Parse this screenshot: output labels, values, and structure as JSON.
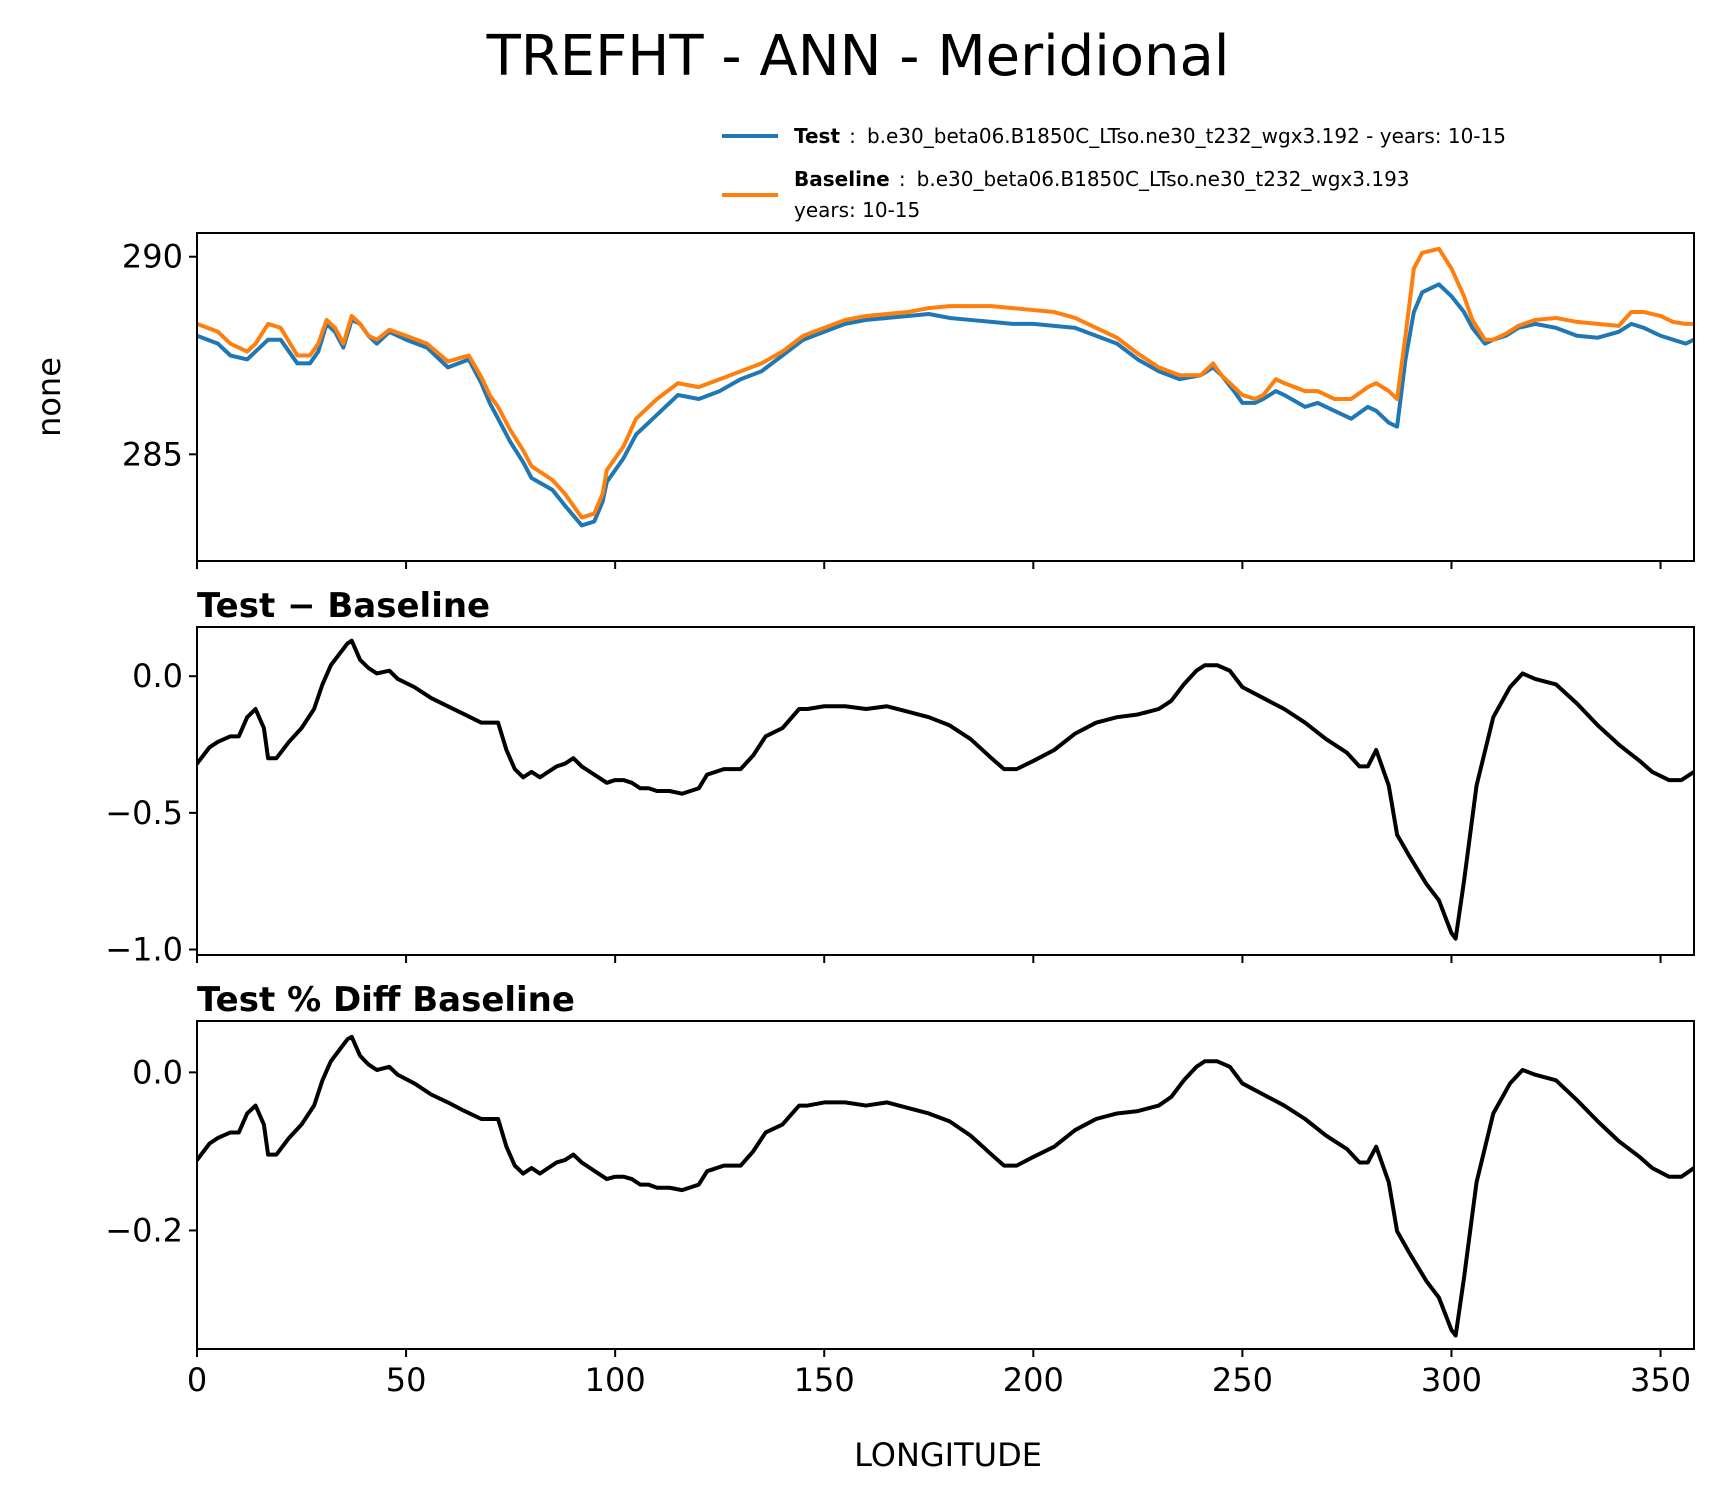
{
  "figure": {
    "title": "TREFHT - ANN - Meridional",
    "xlabel": "LONGITUDE"
  },
  "legend": {
    "test_label": "Test",
    "test_sep": ":",
    "test_desc": "b.e30_beta06.B1850C_LTso.ne30_t232_wgx3.192 - years: 10-15",
    "baseline_label": "Baseline",
    "baseline_sep": ":",
    "baseline_desc": "b.e30_beta06.B1850C_LTso.ne30_t232_wgx3.193",
    "baseline_desc2": "years: 10-15",
    "test_color": "#1f77b4",
    "baseline_color": "#ff7f0e"
  },
  "chart_data": [
    {
      "type": "line",
      "id": "top",
      "title": "",
      "ylabel": "none",
      "xlabel": "",
      "xlim": [
        0,
        358
      ],
      "ylim": [
        282.3,
        290.6
      ],
      "yticks": [
        285,
        290
      ],
      "ytick_labels": [
        "285",
        "290"
      ],
      "xticks": [
        0,
        50,
        100,
        150,
        200,
        250,
        300,
        350
      ],
      "show_xtick_labels": false,
      "series": [
        {
          "name": "Test",
          "color": "#1f77b4",
          "x": [
            0,
            5,
            8,
            12,
            14,
            17,
            20,
            24,
            27,
            29,
            31,
            33,
            35,
            37,
            39,
            41,
            43,
            46,
            50,
            55,
            60,
            65,
            68,
            70,
            72,
            75,
            78,
            80,
            85,
            88,
            92,
            95,
            97,
            98,
            100,
            102,
            105,
            110,
            115,
            120,
            125,
            130,
            135,
            140,
            145,
            150,
            155,
            160,
            165,
            170,
            175,
            180,
            185,
            190,
            195,
            200,
            205,
            210,
            215,
            220,
            225,
            230,
            235,
            240,
            243,
            245,
            248,
            250,
            253,
            255,
            258,
            260,
            265,
            268,
            272,
            276,
            280,
            282,
            285,
            287,
            289,
            291,
            293,
            297,
            300,
            303,
            305,
            308,
            310,
            313,
            316,
            320,
            325,
            330,
            335,
            340,
            343,
            346,
            350,
            353,
            356,
            358
          ],
          "y": [
            288.0,
            287.8,
            287.5,
            287.4,
            287.6,
            287.9,
            287.9,
            287.3,
            287.3,
            287.6,
            288.3,
            288.1,
            287.7,
            288.4,
            288.3,
            288.0,
            287.8,
            288.1,
            287.9,
            287.7,
            287.2,
            287.4,
            286.8,
            286.3,
            285.9,
            285.3,
            284.8,
            284.4,
            284.1,
            283.7,
            283.2,
            283.3,
            283.8,
            284.3,
            284.6,
            284.9,
            285.5,
            286.0,
            286.5,
            286.4,
            286.6,
            286.9,
            287.1,
            287.5,
            287.9,
            288.1,
            288.3,
            288.4,
            288.45,
            288.5,
            288.55,
            288.45,
            288.4,
            288.35,
            288.3,
            288.3,
            288.25,
            288.2,
            288.0,
            287.8,
            287.4,
            287.1,
            286.9,
            287.0,
            287.2,
            287.0,
            286.6,
            286.3,
            286.3,
            286.4,
            286.6,
            286.5,
            286.2,
            286.3,
            286.1,
            285.9,
            286.2,
            286.1,
            285.8,
            285.7,
            287.4,
            288.6,
            289.1,
            289.3,
            289.0,
            288.6,
            288.2,
            287.8,
            287.9,
            288.0,
            288.2,
            288.3,
            288.2,
            288.0,
            287.95,
            288.1,
            288.3,
            288.2,
            288.0,
            287.9,
            287.8,
            287.9
          ],
          "y_shift": "test"
        },
        {
          "name": "Baseline",
          "color": "#ff7f0e",
          "x": [
            0,
            5,
            8,
            12,
            14,
            17,
            20,
            24,
            27,
            29,
            31,
            33,
            35,
            37,
            39,
            41,
            43,
            46,
            50,
            55,
            60,
            65,
            68,
            70,
            72,
            75,
            78,
            80,
            85,
            88,
            92,
            95,
            97,
            98,
            100,
            102,
            105,
            110,
            115,
            120,
            125,
            130,
            135,
            140,
            145,
            150,
            155,
            160,
            165,
            170,
            175,
            180,
            185,
            190,
            195,
            200,
            205,
            210,
            215,
            220,
            225,
            230,
            235,
            240,
            243,
            245,
            248,
            250,
            253,
            255,
            258,
            260,
            265,
            268,
            272,
            276,
            280,
            282,
            285,
            287,
            289,
            291,
            293,
            297,
            300,
            303,
            305,
            308,
            310,
            313,
            316,
            320,
            325,
            330,
            335,
            340,
            343,
            346,
            350,
            353,
            356,
            358
          ],
          "y": [
            288.3,
            288.1,
            287.8,
            287.6,
            287.8,
            288.3,
            288.2,
            287.5,
            287.5,
            287.8,
            288.4,
            288.2,
            287.8,
            288.5,
            288.3,
            288.0,
            287.9,
            288.15,
            288.0,
            287.8,
            287.35,
            287.5,
            286.95,
            286.5,
            286.2,
            285.6,
            285.1,
            284.7,
            284.35,
            284.0,
            283.4,
            283.5,
            284.0,
            284.6,
            284.9,
            285.2,
            285.9,
            286.4,
            286.8,
            286.7,
            286.9,
            287.1,
            287.3,
            287.6,
            288.0,
            288.2,
            288.4,
            288.5,
            288.55,
            288.6,
            288.7,
            288.75,
            288.75,
            288.75,
            288.7,
            288.65,
            288.6,
            288.45,
            288.2,
            287.95,
            287.55,
            287.2,
            287.0,
            287.0,
            287.3,
            287.0,
            286.7,
            286.5,
            286.4,
            286.5,
            286.9,
            286.8,
            286.6,
            286.6,
            286.4,
            286.4,
            286.7,
            286.8,
            286.6,
            286.4,
            288.0,
            289.7,
            290.1,
            290.2,
            289.7,
            289.0,
            288.4,
            287.9,
            287.9,
            288.05,
            288.25,
            288.4,
            288.45,
            288.35,
            288.3,
            288.25,
            288.6,
            288.6,
            288.5,
            288.35,
            288.3,
            288.3
          ],
          "y_shift": "baseline"
        }
      ]
    },
    {
      "type": "line",
      "id": "diff",
      "title": "Test − Baseline",
      "ylabel": "",
      "xlim": [
        0,
        358
      ],
      "ylim": [
        -1.02,
        0.18
      ],
      "yticks": [
        -1.0,
        -0.5,
        0.0
      ],
      "ytick_labels": [
        "−1.0",
        "−0.5",
        "0.0"
      ],
      "xticks": [
        0,
        50,
        100,
        150,
        200,
        250,
        300,
        350
      ],
      "show_xtick_labels": false,
      "series": [
        {
          "name": "Test − Baseline",
          "color": "#000000",
          "x": [
            0,
            3,
            5,
            8,
            10,
            12,
            14,
            16,
            17,
            19,
            22,
            25,
            28,
            30,
            32,
            34,
            36,
            37,
            39,
            41,
            43,
            46,
            48,
            52,
            56,
            60,
            64,
            68,
            72,
            74,
            76,
            78,
            80,
            82,
            84,
            86,
            88,
            90,
            92,
            94,
            96,
            98,
            100,
            102,
            104,
            106,
            108,
            110,
            113,
            116,
            120,
            122,
            126,
            130,
            133,
            136,
            140,
            144,
            146,
            150,
            155,
            160,
            165,
            170,
            175,
            180,
            185,
            190,
            193,
            196,
            200,
            205,
            210,
            215,
            220,
            225,
            230,
            233,
            236,
            239,
            241,
            244,
            247,
            250,
            255,
            260,
            265,
            270,
            275,
            278,
            280,
            282,
            285,
            287,
            290,
            294,
            297,
            300,
            301,
            303,
            306,
            310,
            314,
            317,
            320,
            325,
            330,
            335,
            340,
            345,
            348,
            352,
            355,
            358
          ],
          "y": [
            -0.32,
            -0.26,
            -0.24,
            -0.22,
            -0.22,
            -0.15,
            -0.12,
            -0.19,
            -0.3,
            -0.3,
            -0.24,
            -0.19,
            -0.12,
            -0.03,
            0.04,
            0.08,
            0.12,
            0.13,
            0.06,
            0.03,
            0.01,
            0.02,
            -0.01,
            -0.04,
            -0.08,
            -0.11,
            -0.14,
            -0.17,
            -0.17,
            -0.27,
            -0.34,
            -0.37,
            -0.35,
            -0.37,
            -0.35,
            -0.33,
            -0.32,
            -0.3,
            -0.33,
            -0.35,
            -0.37,
            -0.39,
            -0.38,
            -0.38,
            -0.39,
            -0.41,
            -0.41,
            -0.42,
            -0.42,
            -0.43,
            -0.41,
            -0.36,
            -0.34,
            -0.34,
            -0.29,
            -0.22,
            -0.19,
            -0.12,
            -0.12,
            -0.11,
            -0.11,
            -0.12,
            -0.11,
            -0.13,
            -0.15,
            -0.18,
            -0.23,
            -0.3,
            -0.34,
            -0.34,
            -0.31,
            -0.27,
            -0.21,
            -0.17,
            -0.15,
            -0.14,
            -0.12,
            -0.09,
            -0.03,
            0.02,
            0.04,
            0.04,
            0.02,
            -0.04,
            -0.08,
            -0.12,
            -0.17,
            -0.23,
            -0.28,
            -0.33,
            -0.33,
            -0.27,
            -0.4,
            -0.58,
            -0.66,
            -0.76,
            -0.82,
            -0.94,
            -0.96,
            -0.75,
            -0.4,
            -0.15,
            -0.04,
            0.01,
            -0.01,
            -0.03,
            -0.1,
            -0.18,
            -0.25,
            -0.31,
            -0.35,
            -0.38,
            -0.38,
            -0.35
          ],
          "y_shift": "diff"
        }
      ]
    },
    {
      "type": "line",
      "id": "pct",
      "title": "Test % Diff Baseline",
      "ylabel": "",
      "xlim": [
        0,
        358
      ],
      "ylim": [
        -0.35,
        0.065
      ],
      "yticks": [
        -0.2,
        0.0
      ],
      "ytick_labels": [
        "−0.2",
        "0.0"
      ],
      "xticks": [
        0,
        50,
        100,
        150,
        200,
        250,
        300,
        350
      ],
      "xtick_labels": [
        "0",
        "50",
        "100",
        "150",
        "200",
        "250",
        "300",
        "350"
      ],
      "show_xtick_labels": true,
      "series": [
        {
          "name": "Test % Diff Baseline",
          "color": "#000000",
          "x": [
            0,
            3,
            5,
            8,
            10,
            12,
            14,
            16,
            17,
            19,
            22,
            25,
            28,
            30,
            32,
            34,
            36,
            37,
            39,
            41,
            43,
            46,
            48,
            52,
            56,
            60,
            64,
            68,
            72,
            74,
            76,
            78,
            80,
            82,
            84,
            86,
            88,
            90,
            92,
            94,
            96,
            98,
            100,
            102,
            104,
            106,
            108,
            110,
            113,
            116,
            120,
            122,
            126,
            130,
            133,
            136,
            140,
            144,
            146,
            150,
            155,
            160,
            165,
            170,
            175,
            180,
            185,
            190,
            193,
            196,
            200,
            205,
            210,
            215,
            220,
            225,
            230,
            233,
            236,
            239,
            241,
            244,
            247,
            250,
            255,
            260,
            265,
            270,
            275,
            278,
            280,
            282,
            285,
            287,
            290,
            294,
            297,
            300,
            301,
            303,
            306,
            310,
            314,
            317,
            320,
            325,
            330,
            335,
            340,
            345,
            348,
            352,
            355,
            358
          ],
          "y": [
            -0.111,
            -0.09,
            -0.083,
            -0.076,
            -0.076,
            -0.052,
            -0.042,
            -0.066,
            -0.104,
            -0.104,
            -0.083,
            -0.066,
            -0.042,
            -0.01,
            0.014,
            0.028,
            0.042,
            0.045,
            0.021,
            0.01,
            0.003,
            0.007,
            -0.003,
            -0.014,
            -0.028,
            -0.038,
            -0.049,
            -0.059,
            -0.059,
            -0.094,
            -0.118,
            -0.128,
            -0.121,
            -0.128,
            -0.121,
            -0.114,
            -0.111,
            -0.104,
            -0.114,
            -0.121,
            -0.128,
            -0.135,
            -0.132,
            -0.132,
            -0.135,
            -0.142,
            -0.142,
            -0.146,
            -0.146,
            -0.149,
            -0.142,
            -0.125,
            -0.118,
            -0.118,
            -0.1,
            -0.076,
            -0.066,
            -0.042,
            -0.042,
            -0.038,
            -0.038,
            -0.042,
            -0.038,
            -0.045,
            -0.052,
            -0.062,
            -0.08,
            -0.104,
            -0.118,
            -0.118,
            -0.107,
            -0.094,
            -0.073,
            -0.059,
            -0.052,
            -0.049,
            -0.042,
            -0.031,
            -0.01,
            0.007,
            0.014,
            0.014,
            0.007,
            -0.014,
            -0.028,
            -0.042,
            -0.059,
            -0.08,
            -0.097,
            -0.114,
            -0.114,
            -0.094,
            -0.139,
            -0.201,
            -0.229,
            -0.264,
            -0.285,
            -0.326,
            -0.333,
            -0.26,
            -0.139,
            -0.052,
            -0.014,
            0.003,
            -0.003,
            -0.01,
            -0.035,
            -0.062,
            -0.087,
            -0.107,
            -0.121,
            -0.132,
            -0.132,
            -0.121
          ],
          "y_shift": "pct"
        }
      ]
    }
  ]
}
